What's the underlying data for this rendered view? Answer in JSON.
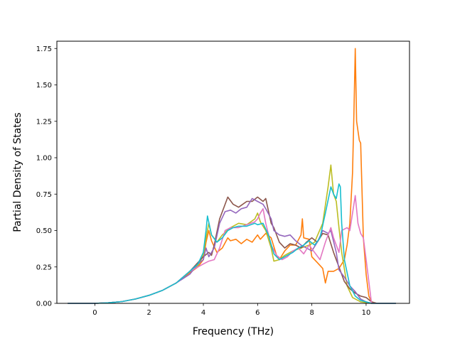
{
  "chart_data": {
    "type": "line",
    "title": "",
    "xlabel": "Frequency (THz)",
    "ylabel": "Partial Density of States",
    "xlim": [
      -1.4,
      11.6
    ],
    "ylim": [
      0,
      1.8
    ],
    "xticks": [
      0,
      2,
      4,
      6,
      8,
      10
    ],
    "xtick_labels": [
      "0",
      "2",
      "4",
      "6",
      "8",
      "10"
    ],
    "yticks": [
      0,
      0.25,
      0.5,
      0.75,
      1.0,
      1.25,
      1.5,
      1.75
    ],
    "ytick_labels": [
      "0.00",
      "0.25",
      "0.50",
      "0.75",
      "1.00",
      "1.25",
      "1.50",
      "1.75"
    ],
    "grid": false,
    "legend": "none",
    "series": [
      {
        "color": "#ff7f0e",
        "points": [
          [
            -1.0,
            0
          ],
          [
            0,
            0
          ],
          [
            0.5,
            0.004
          ],
          [
            1,
            0.012
          ],
          [
            1.5,
            0.03
          ],
          [
            2,
            0.055
          ],
          [
            2.5,
            0.09
          ],
          [
            3,
            0.14
          ],
          [
            3.5,
            0.21
          ],
          [
            3.8,
            0.25
          ],
          [
            4.0,
            0.3
          ],
          [
            4.1,
            0.42
          ],
          [
            4.2,
            0.5
          ],
          [
            4.3,
            0.43
          ],
          [
            4.5,
            0.35
          ],
          [
            4.7,
            0.38
          ],
          [
            4.9,
            0.45
          ],
          [
            5.0,
            0.43
          ],
          [
            5.2,
            0.44
          ],
          [
            5.4,
            0.41
          ],
          [
            5.6,
            0.44
          ],
          [
            5.8,
            0.42
          ],
          [
            6.0,
            0.47
          ],
          [
            6.1,
            0.44
          ],
          [
            6.3,
            0.48
          ],
          [
            6.5,
            0.45
          ],
          [
            6.7,
            0.33
          ],
          [
            6.8,
            0.3
          ],
          [
            7.0,
            0.36
          ],
          [
            7.2,
            0.4
          ],
          [
            7.4,
            0.4
          ],
          [
            7.6,
            0.47
          ],
          [
            7.65,
            0.58
          ],
          [
            7.7,
            0.45
          ],
          [
            7.9,
            0.44
          ],
          [
            8.0,
            0.32
          ],
          [
            8.2,
            0.28
          ],
          [
            8.4,
            0.24
          ],
          [
            8.5,
            0.14
          ],
          [
            8.6,
            0.22
          ],
          [
            8.8,
            0.22
          ],
          [
            9.0,
            0.24
          ],
          [
            9.2,
            0.3
          ],
          [
            9.3,
            0.4
          ],
          [
            9.4,
            0.55
          ],
          [
            9.5,
            0.9
          ],
          [
            9.55,
            1.3
          ],
          [
            9.6,
            1.75
          ],
          [
            9.65,
            1.25
          ],
          [
            9.75,
            1.12
          ],
          [
            9.8,
            1.1
          ],
          [
            9.9,
            0.45
          ],
          [
            10.0,
            0.2
          ],
          [
            10.1,
            0.05
          ],
          [
            10.2,
            0.01
          ],
          [
            10.4,
            0
          ],
          [
            11.1,
            0
          ]
        ]
      },
      {
        "color": "#bcbd22",
        "points": [
          [
            -1.0,
            0
          ],
          [
            0,
            0
          ],
          [
            0.5,
            0.004
          ],
          [
            1,
            0.012
          ],
          [
            1.5,
            0.03
          ],
          [
            2,
            0.055
          ],
          [
            2.5,
            0.09
          ],
          [
            3,
            0.14
          ],
          [
            3.5,
            0.22
          ],
          [
            3.8,
            0.26
          ],
          [
            4.0,
            0.33
          ],
          [
            4.1,
            0.45
          ],
          [
            4.2,
            0.55
          ],
          [
            4.3,
            0.47
          ],
          [
            4.5,
            0.42
          ],
          [
            4.7,
            0.47
          ],
          [
            5.0,
            0.52
          ],
          [
            5.3,
            0.55
          ],
          [
            5.6,
            0.54
          ],
          [
            5.9,
            0.58
          ],
          [
            6.0,
            0.62
          ],
          [
            6.1,
            0.56
          ],
          [
            6.3,
            0.5
          ],
          [
            6.5,
            0.38
          ],
          [
            6.6,
            0.29
          ],
          [
            6.8,
            0.3
          ],
          [
            7.0,
            0.33
          ],
          [
            7.3,
            0.36
          ],
          [
            7.6,
            0.38
          ],
          [
            7.9,
            0.4
          ],
          [
            8.1,
            0.42
          ],
          [
            8.4,
            0.55
          ],
          [
            8.6,
            0.8
          ],
          [
            8.7,
            0.95
          ],
          [
            8.8,
            0.75
          ],
          [
            8.9,
            0.7
          ],
          [
            9.0,
            0.52
          ],
          [
            9.1,
            0.35
          ],
          [
            9.3,
            0.12
          ],
          [
            9.5,
            0.04
          ],
          [
            9.8,
            0.01
          ],
          [
            10.2,
            0
          ],
          [
            11.1,
            0
          ]
        ]
      },
      {
        "color": "#8c564b",
        "points": [
          [
            -1.0,
            0
          ],
          [
            0,
            0
          ],
          [
            0.5,
            0.004
          ],
          [
            1,
            0.012
          ],
          [
            1.5,
            0.03
          ],
          [
            2,
            0.055
          ],
          [
            2.5,
            0.09
          ],
          [
            3,
            0.14
          ],
          [
            3.5,
            0.22
          ],
          [
            3.8,
            0.28
          ],
          [
            4.0,
            0.32
          ],
          [
            4.2,
            0.35
          ],
          [
            4.3,
            0.33
          ],
          [
            4.4,
            0.4
          ],
          [
            4.6,
            0.58
          ],
          [
            4.8,
            0.68
          ],
          [
            4.9,
            0.73
          ],
          [
            5.1,
            0.68
          ],
          [
            5.3,
            0.66
          ],
          [
            5.6,
            0.7
          ],
          [
            5.8,
            0.7
          ],
          [
            6.0,
            0.73
          ],
          [
            6.2,
            0.7
          ],
          [
            6.3,
            0.72
          ],
          [
            6.5,
            0.55
          ],
          [
            6.6,
            0.52
          ],
          [
            6.8,
            0.42
          ],
          [
            7.0,
            0.38
          ],
          [
            7.2,
            0.41
          ],
          [
            7.4,
            0.4
          ],
          [
            7.6,
            0.38
          ],
          [
            7.8,
            0.42
          ],
          [
            8.0,
            0.45
          ],
          [
            8.2,
            0.42
          ],
          [
            8.4,
            0.48
          ],
          [
            8.6,
            0.47
          ],
          [
            8.8,
            0.35
          ],
          [
            9.0,
            0.25
          ],
          [
            9.2,
            0.15
          ],
          [
            9.4,
            0.1
          ],
          [
            9.6,
            0.07
          ],
          [
            9.8,
            0.05
          ],
          [
            10.0,
            0.04
          ],
          [
            10.2,
            0.01
          ],
          [
            10.4,
            0
          ],
          [
            11.1,
            0
          ]
        ]
      },
      {
        "color": "#9467bd",
        "points": [
          [
            -1.0,
            0
          ],
          [
            0,
            0
          ],
          [
            0.5,
            0.004
          ],
          [
            1,
            0.012
          ],
          [
            1.5,
            0.03
          ],
          [
            2,
            0.055
          ],
          [
            2.5,
            0.09
          ],
          [
            3,
            0.14
          ],
          [
            3.5,
            0.2
          ],
          [
            3.8,
            0.27
          ],
          [
            4.0,
            0.3
          ],
          [
            4.1,
            0.38
          ],
          [
            4.2,
            0.32
          ],
          [
            4.4,
            0.38
          ],
          [
            4.6,
            0.55
          ],
          [
            4.8,
            0.63
          ],
          [
            5.0,
            0.64
          ],
          [
            5.2,
            0.62
          ],
          [
            5.4,
            0.65
          ],
          [
            5.6,
            0.66
          ],
          [
            5.8,
            0.72
          ],
          [
            6.0,
            0.7
          ],
          [
            6.2,
            0.68
          ],
          [
            6.3,
            0.65
          ],
          [
            6.5,
            0.58
          ],
          [
            6.6,
            0.5
          ],
          [
            6.8,
            0.47
          ],
          [
            7.0,
            0.46
          ],
          [
            7.2,
            0.47
          ],
          [
            7.4,
            0.43
          ],
          [
            7.6,
            0.4
          ],
          [
            7.8,
            0.38
          ],
          [
            8.0,
            0.36
          ],
          [
            8.2,
            0.42
          ],
          [
            8.4,
            0.5
          ],
          [
            8.6,
            0.48
          ],
          [
            8.7,
            0.5
          ],
          [
            8.9,
            0.35
          ],
          [
            9.0,
            0.23
          ],
          [
            9.2,
            0.18
          ],
          [
            9.4,
            0.12
          ],
          [
            9.6,
            0.08
          ],
          [
            9.8,
            0.03
          ],
          [
            10.0,
            0.01
          ],
          [
            10.2,
            0
          ],
          [
            11.1,
            0
          ]
        ]
      },
      {
        "color": "#e377c2",
        "points": [
          [
            -1.0,
            0
          ],
          [
            0,
            0
          ],
          [
            0.5,
            0.004
          ],
          [
            1,
            0.012
          ],
          [
            1.5,
            0.03
          ],
          [
            2,
            0.055
          ],
          [
            2.5,
            0.09
          ],
          [
            3,
            0.14
          ],
          [
            3.5,
            0.22
          ],
          [
            3.8,
            0.25
          ],
          [
            4.0,
            0.27
          ],
          [
            4.2,
            0.29
          ],
          [
            4.4,
            0.3
          ],
          [
            4.6,
            0.38
          ],
          [
            4.8,
            0.5
          ],
          [
            5.0,
            0.52
          ],
          [
            5.3,
            0.52
          ],
          [
            5.6,
            0.54
          ],
          [
            5.9,
            0.56
          ],
          [
            6.0,
            0.58
          ],
          [
            6.1,
            0.62
          ],
          [
            6.2,
            0.65
          ],
          [
            6.3,
            0.55
          ],
          [
            6.5,
            0.4
          ],
          [
            6.7,
            0.33
          ],
          [
            6.9,
            0.3
          ],
          [
            7.1,
            0.32
          ],
          [
            7.3,
            0.36
          ],
          [
            7.5,
            0.38
          ],
          [
            7.7,
            0.34
          ],
          [
            7.9,
            0.4
          ],
          [
            8.1,
            0.35
          ],
          [
            8.3,
            0.3
          ],
          [
            8.5,
            0.42
          ],
          [
            8.7,
            0.52
          ],
          [
            8.8,
            0.45
          ],
          [
            9.0,
            0.35
          ],
          [
            9.1,
            0.5
          ],
          [
            9.3,
            0.52
          ],
          [
            9.4,
            0.5
          ],
          [
            9.5,
            0.62
          ],
          [
            9.6,
            0.74
          ],
          [
            9.7,
            0.55
          ],
          [
            9.8,
            0.48
          ],
          [
            9.9,
            0.45
          ],
          [
            10.0,
            0.3
          ],
          [
            10.1,
            0.15
          ],
          [
            10.2,
            0
          ],
          [
            11.1,
            0
          ]
        ]
      },
      {
        "color": "#17becf",
        "points": [
          [
            -1.0,
            0
          ],
          [
            0,
            0
          ],
          [
            0.5,
            0.004
          ],
          [
            1,
            0.012
          ],
          [
            1.5,
            0.03
          ],
          [
            2,
            0.055
          ],
          [
            2.5,
            0.09
          ],
          [
            3,
            0.14
          ],
          [
            3.5,
            0.22
          ],
          [
            3.8,
            0.27
          ],
          [
            4.0,
            0.35
          ],
          [
            4.1,
            0.5
          ],
          [
            4.15,
            0.6
          ],
          [
            4.3,
            0.47
          ],
          [
            4.5,
            0.42
          ],
          [
            4.7,
            0.45
          ],
          [
            4.9,
            0.5
          ],
          [
            5.1,
            0.52
          ],
          [
            5.3,
            0.53
          ],
          [
            5.6,
            0.53
          ],
          [
            5.9,
            0.55
          ],
          [
            6.0,
            0.54
          ],
          [
            6.2,
            0.55
          ],
          [
            6.4,
            0.47
          ],
          [
            6.6,
            0.34
          ],
          [
            6.8,
            0.3
          ],
          [
            7.0,
            0.32
          ],
          [
            7.3,
            0.35
          ],
          [
            7.5,
            0.38
          ],
          [
            7.7,
            0.4
          ],
          [
            7.9,
            0.43
          ],
          [
            8.1,
            0.4
          ],
          [
            8.3,
            0.45
          ],
          [
            8.5,
            0.62
          ],
          [
            8.7,
            0.8
          ],
          [
            8.8,
            0.75
          ],
          [
            8.9,
            0.72
          ],
          [
            9.0,
            0.82
          ],
          [
            9.05,
            0.8
          ],
          [
            9.1,
            0.55
          ],
          [
            9.2,
            0.3
          ],
          [
            9.4,
            0.12
          ],
          [
            9.6,
            0.05
          ],
          [
            9.8,
            0.02
          ],
          [
            10.0,
            0.01
          ],
          [
            10.2,
            0
          ],
          [
            11.1,
            0
          ]
        ]
      }
    ]
  }
}
